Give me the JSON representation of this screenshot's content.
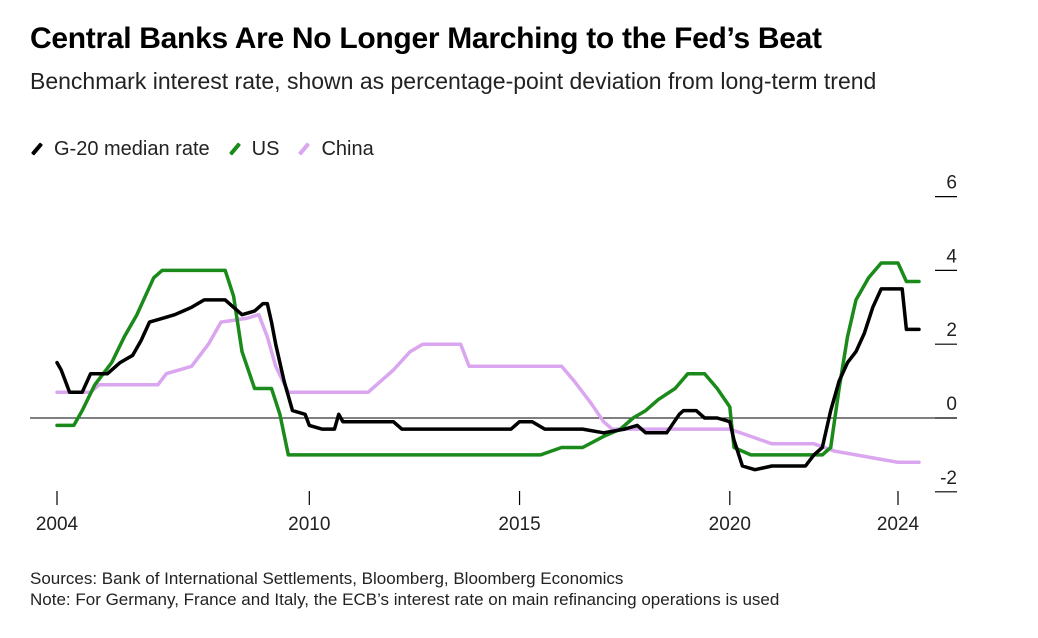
{
  "header": {
    "title": "Central Banks Are No Longer Marching to the Fed’s Beat",
    "subtitle": "Benchmark interest rate, shown as percentage-point deviation from long-term trend"
  },
  "legend": [
    {
      "label": "G-20 median rate",
      "color": "#000000"
    },
    {
      "label": "US",
      "color": "#1a8a1a"
    },
    {
      "label": "China",
      "color": "#d9a6ef"
    }
  ],
  "footer": {
    "sources": "Sources: Bank of International Settlements, Bloomberg, Bloomberg Economics",
    "note": "Note: For Germany, France and Italy, the ECB’s interest rate on main refinancing operations is used"
  },
  "chart_data": {
    "type": "line",
    "title": "Central Banks Are No Longer Marching to the Fed’s Beat",
    "subtitle": "Benchmark interest rate, shown as percentage-point deviation from long-term trend",
    "xlabel": "",
    "ylabel": "",
    "xlim": [
      2004,
      2024
    ],
    "ylim": [
      -2,
      6
    ],
    "x_ticks": [
      2004,
      2010,
      2015,
      2020,
      2024
    ],
    "y_ticks": [
      6,
      4,
      2,
      0,
      -2
    ],
    "y_axis_side": "right",
    "zero_line": true,
    "grid": false,
    "legend_position": "top-left",
    "series": [
      {
        "name": "G-20 median rate",
        "color": "#000000",
        "points": [
          [
            2004.0,
            1.5
          ],
          [
            2004.1,
            1.3
          ],
          [
            2004.3,
            0.7
          ],
          [
            2004.6,
            0.7
          ],
          [
            2004.8,
            1.2
          ],
          [
            2005.2,
            1.2
          ],
          [
            2005.5,
            1.5
          ],
          [
            2005.8,
            1.7
          ],
          [
            2006.0,
            2.1
          ],
          [
            2006.2,
            2.6
          ],
          [
            2006.5,
            2.7
          ],
          [
            2006.8,
            2.8
          ],
          [
            2007.0,
            2.9
          ],
          [
            2007.2,
            3.0
          ],
          [
            2007.5,
            3.2
          ],
          [
            2008.0,
            3.2
          ],
          [
            2008.2,
            3.0
          ],
          [
            2008.4,
            2.8
          ],
          [
            2008.7,
            2.9
          ],
          [
            2008.9,
            3.1
          ],
          [
            2009.0,
            3.1
          ],
          [
            2009.1,
            2.6
          ],
          [
            2009.2,
            2.0
          ],
          [
            2009.4,
            1.0
          ],
          [
            2009.6,
            0.2
          ],
          [
            2009.9,
            0.1
          ],
          [
            2010.0,
            -0.2
          ],
          [
            2010.3,
            -0.3
          ],
          [
            2010.6,
            -0.3
          ],
          [
            2010.7,
            0.1
          ],
          [
            2010.8,
            -0.1
          ],
          [
            2012.0,
            -0.1
          ],
          [
            2012.2,
            -0.3
          ],
          [
            2013.5,
            -0.3
          ],
          [
            2014.8,
            -0.3
          ],
          [
            2015.0,
            -0.1
          ],
          [
            2015.3,
            -0.1
          ],
          [
            2015.6,
            -0.3
          ],
          [
            2016.5,
            -0.3
          ],
          [
            2017.0,
            -0.4
          ],
          [
            2017.5,
            -0.3
          ],
          [
            2017.8,
            -0.2
          ],
          [
            2018.0,
            -0.4
          ],
          [
            2018.5,
            -0.4
          ],
          [
            2018.8,
            0.1
          ],
          [
            2018.9,
            0.2
          ],
          [
            2019.2,
            0.2
          ],
          [
            2019.4,
            0.0
          ],
          [
            2019.7,
            0.0
          ],
          [
            2020.0,
            -0.1
          ],
          [
            2020.1,
            -0.6
          ],
          [
            2020.3,
            -1.3
          ],
          [
            2020.6,
            -1.4
          ],
          [
            2021.0,
            -1.3
          ],
          [
            2021.5,
            -1.3
          ],
          [
            2021.8,
            -1.3
          ],
          [
            2022.0,
            -1.0
          ],
          [
            2022.2,
            -0.8
          ],
          [
            2022.4,
            0.2
          ],
          [
            2022.6,
            1.0
          ],
          [
            2022.8,
            1.5
          ],
          [
            2023.0,
            1.8
          ],
          [
            2023.2,
            2.3
          ],
          [
            2023.4,
            3.0
          ],
          [
            2023.6,
            3.5
          ],
          [
            2024.0,
            3.5
          ],
          [
            2024.1,
            3.5
          ],
          [
            2024.2,
            2.4
          ],
          [
            2024.5,
            2.4
          ]
        ]
      },
      {
        "name": "US",
        "color": "#1a8a1a",
        "points": [
          [
            2004.0,
            -0.2
          ],
          [
            2004.4,
            -0.2
          ],
          [
            2004.6,
            0.2
          ],
          [
            2004.9,
            0.9
          ],
          [
            2005.3,
            1.5
          ],
          [
            2005.6,
            2.2
          ],
          [
            2005.9,
            2.8
          ],
          [
            2006.1,
            3.3
          ],
          [
            2006.3,
            3.8
          ],
          [
            2006.5,
            4.0
          ],
          [
            2008.0,
            4.0
          ],
          [
            2008.2,
            3.3
          ],
          [
            2008.4,
            1.8
          ],
          [
            2008.7,
            0.8
          ],
          [
            2009.1,
            0.8
          ],
          [
            2009.3,
            0.1
          ],
          [
            2009.5,
            -1.0
          ],
          [
            2015.5,
            -1.0
          ],
          [
            2016.0,
            -0.8
          ],
          [
            2016.5,
            -0.8
          ],
          [
            2017.0,
            -0.5
          ],
          [
            2017.4,
            -0.3
          ],
          [
            2017.7,
            0.0
          ],
          [
            2018.0,
            0.2
          ],
          [
            2018.3,
            0.5
          ],
          [
            2018.7,
            0.8
          ],
          [
            2019.0,
            1.2
          ],
          [
            2019.4,
            1.2
          ],
          [
            2019.7,
            0.8
          ],
          [
            2020.0,
            0.3
          ],
          [
            2020.1,
            -0.8
          ],
          [
            2020.5,
            -1.0
          ],
          [
            2022.2,
            -1.0
          ],
          [
            2022.4,
            -0.8
          ],
          [
            2022.6,
            0.8
          ],
          [
            2022.8,
            2.2
          ],
          [
            2023.0,
            3.2
          ],
          [
            2023.3,
            3.8
          ],
          [
            2023.6,
            4.2
          ],
          [
            2024.0,
            4.2
          ],
          [
            2024.2,
            3.7
          ],
          [
            2024.5,
            3.7
          ]
        ]
      },
      {
        "name": "China",
        "color": "#d9a6ef",
        "points": [
          [
            2004.0,
            0.7
          ],
          [
            2004.8,
            0.7
          ],
          [
            2005.0,
            0.9
          ],
          [
            2006.4,
            0.9
          ],
          [
            2006.6,
            1.2
          ],
          [
            2007.2,
            1.4
          ],
          [
            2007.6,
            2.0
          ],
          [
            2007.9,
            2.6
          ],
          [
            2008.5,
            2.7
          ],
          [
            2008.8,
            2.8
          ],
          [
            2009.0,
            2.2
          ],
          [
            2009.2,
            1.4
          ],
          [
            2009.5,
            0.7
          ],
          [
            2011.4,
            0.7
          ],
          [
            2011.7,
            1.0
          ],
          [
            2012.0,
            1.3
          ],
          [
            2012.4,
            1.8
          ],
          [
            2012.7,
            2.0
          ],
          [
            2013.6,
            2.0
          ],
          [
            2013.8,
            1.4
          ],
          [
            2016.0,
            1.4
          ],
          [
            2016.3,
            1.0
          ],
          [
            2016.7,
            0.4
          ],
          [
            2017.0,
            -0.1
          ],
          [
            2017.2,
            -0.3
          ],
          [
            2020.0,
            -0.3
          ],
          [
            2020.5,
            -0.5
          ],
          [
            2021.0,
            -0.7
          ],
          [
            2022.0,
            -0.7
          ],
          [
            2022.5,
            -0.9
          ],
          [
            2023.0,
            -1.0
          ],
          [
            2023.5,
            -1.1
          ],
          [
            2024.0,
            -1.2
          ],
          [
            2024.5,
            -1.2
          ]
        ]
      }
    ]
  }
}
